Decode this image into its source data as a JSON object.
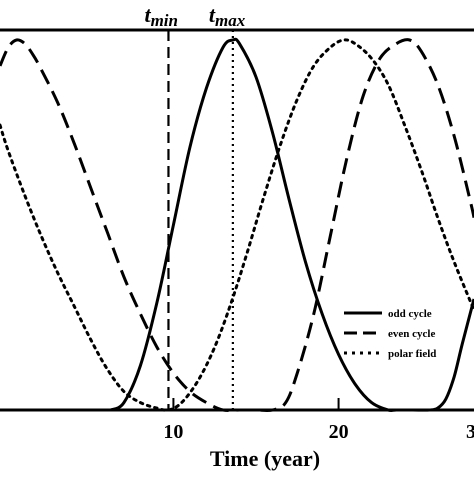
{
  "chart_data": {
    "type": "line",
    "xlabel": "Time (year)",
    "ylabel": "",
    "xlim": [
      -0.5,
      28.2
    ],
    "ylim": [
      0,
      1
    ],
    "x_ticks": [
      10,
      20
    ],
    "x_tick_labels": [
      "10",
      "20"
    ],
    "edge_tick_label": "3",
    "grid": false,
    "legend_position": "bottom-right",
    "markers": [
      {
        "name": "t_min",
        "label": "t",
        "sub": "min",
        "x": 9.7,
        "style": "dashed"
      },
      {
        "name": "t_max",
        "label": "t",
        "sub": "max",
        "x": 13.6,
        "style": "dotted"
      }
    ],
    "series": [
      {
        "name": "odd cycle",
        "style": "solid",
        "x": [
          6.2,
          7,
          8,
          9,
          10,
          11,
          12,
          13,
          13.6,
          14,
          15,
          16,
          17,
          18,
          19,
          20,
          21,
          22,
          23,
          23.5,
          24.5,
          25.5,
          26,
          26.5,
          27,
          27.5,
          28.2
        ],
        "y": [
          0,
          0.02,
          0.12,
          0.29,
          0.5,
          0.71,
          0.87,
          0.98,
          1.0,
          0.99,
          0.9,
          0.75,
          0.57,
          0.4,
          0.26,
          0.15,
          0.07,
          0.02,
          0,
          0,
          0,
          0,
          0.005,
          0.03,
          0.09,
          0.18,
          0.3
        ]
      },
      {
        "name": "even cycle",
        "style": "dashed",
        "x": [
          -0.5,
          0,
          0.5,
          1,
          1.5,
          2,
          3,
          4,
          5,
          6,
          7,
          8,
          9,
          10,
          11,
          12,
          13,
          14,
          15,
          16,
          16.8,
          17.5,
          18.5,
          19.5,
          20.5,
          21.5,
          22.5,
          23.5,
          24.3,
          25,
          26,
          27,
          28,
          28.2
        ],
        "y": [
          0.93,
          0.98,
          1.0,
          0.99,
          0.96,
          0.92,
          0.83,
          0.72,
          0.6,
          0.48,
          0.36,
          0.26,
          0.17,
          0.1,
          0.05,
          0.02,
          0,
          0,
          0,
          0,
          0.02,
          0.1,
          0.26,
          0.47,
          0.68,
          0.85,
          0.95,
          0.99,
          1.0,
          0.97,
          0.88,
          0.74,
          0.56,
          0.52
        ]
      },
      {
        "name": "polar field",
        "style": "dotted",
        "x": [
          -0.5,
          0,
          1,
          2,
          3,
          4,
          5,
          6,
          7,
          8,
          9,
          9.7,
          10.5,
          11.5,
          12.5,
          13.5,
          14.5,
          15.5,
          16.5,
          17.5,
          18.5,
          19.5,
          20.3,
          21,
          22,
          23,
          24,
          25,
          26,
          27,
          28.2
        ],
        "y": [
          0.77,
          0.7,
          0.58,
          0.47,
          0.37,
          0.28,
          0.19,
          0.11,
          0.05,
          0.02,
          0.005,
          0.0,
          0.02,
          0.08,
          0.17,
          0.29,
          0.43,
          0.58,
          0.72,
          0.84,
          0.93,
          0.98,
          1.0,
          0.99,
          0.95,
          0.88,
          0.77,
          0.65,
          0.52,
          0.4,
          0.27
        ]
      }
    ]
  }
}
